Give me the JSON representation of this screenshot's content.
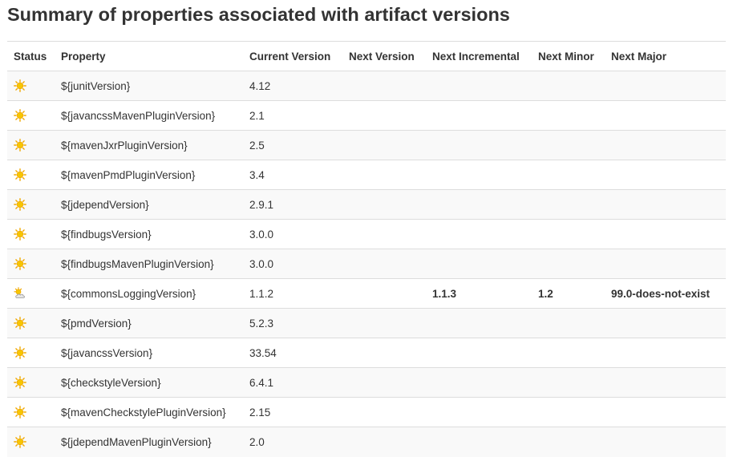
{
  "page": {
    "title": "Summary of properties associated with artifact versions"
  },
  "table": {
    "headers": {
      "status": "Status",
      "property": "Property",
      "current_version": "Current Version",
      "next_version": "Next Version",
      "next_incremental": "Next Incremental",
      "next_minor": "Next Minor",
      "next_major": "Next Major"
    },
    "rows": [
      {
        "status_icon": "sun-icon",
        "property": "${junitVersion}",
        "current": "4.12",
        "next_version": "",
        "next_incremental": "",
        "next_minor": "",
        "next_major": ""
      },
      {
        "status_icon": "sun-icon",
        "property": "${javancssMavenPluginVersion}",
        "current": "2.1",
        "next_version": "",
        "next_incremental": "",
        "next_minor": "",
        "next_major": ""
      },
      {
        "status_icon": "sun-icon",
        "property": "${mavenJxrPluginVersion}",
        "current": "2.5",
        "next_version": "",
        "next_incremental": "",
        "next_minor": "",
        "next_major": ""
      },
      {
        "status_icon": "sun-icon",
        "property": "${mavenPmdPluginVersion}",
        "current": "3.4",
        "next_version": "",
        "next_incremental": "",
        "next_minor": "",
        "next_major": ""
      },
      {
        "status_icon": "sun-icon",
        "property": "${jdependVersion}",
        "current": "2.9.1",
        "next_version": "",
        "next_incremental": "",
        "next_minor": "",
        "next_major": ""
      },
      {
        "status_icon": "sun-icon",
        "property": "${findbugsVersion}",
        "current": "3.0.0",
        "next_version": "",
        "next_incremental": "",
        "next_minor": "",
        "next_major": ""
      },
      {
        "status_icon": "sun-icon",
        "property": "${findbugsMavenPluginVersion}",
        "current": "3.0.0",
        "next_version": "",
        "next_incremental": "",
        "next_minor": "",
        "next_major": ""
      },
      {
        "status_icon": "cloudy-sun-icon",
        "property": "${commonsLoggingVersion}",
        "current": "1.1.2",
        "next_version": "",
        "next_incremental": "1.1.3",
        "next_minor": "1.2",
        "next_major": "99.0-does-not-exist"
      },
      {
        "status_icon": "sun-icon",
        "property": "${pmdVersion}",
        "current": "5.2.3",
        "next_version": "",
        "next_incremental": "",
        "next_minor": "",
        "next_major": ""
      },
      {
        "status_icon": "sun-icon",
        "property": "${javancssVersion}",
        "current": "33.54",
        "next_version": "",
        "next_incremental": "",
        "next_minor": "",
        "next_major": ""
      },
      {
        "status_icon": "sun-icon",
        "property": "${checkstyleVersion}",
        "current": "6.4.1",
        "next_version": "",
        "next_incremental": "",
        "next_minor": "",
        "next_major": ""
      },
      {
        "status_icon": "sun-icon",
        "property": "${mavenCheckstylePluginVersion}",
        "current": "2.15",
        "next_version": "",
        "next_incremental": "",
        "next_minor": "",
        "next_major": ""
      },
      {
        "status_icon": "sun-icon",
        "property": "${jdependMavenPluginVersion}",
        "current": "2.0",
        "next_version": "",
        "next_incremental": "",
        "next_minor": "",
        "next_major": ""
      }
    ]
  },
  "colors": {
    "sun_core": "#f7c600",
    "sun_rays": "#f0a800",
    "cloud": "#e6e6e6",
    "cloud_outline": "#9a9a9a"
  }
}
